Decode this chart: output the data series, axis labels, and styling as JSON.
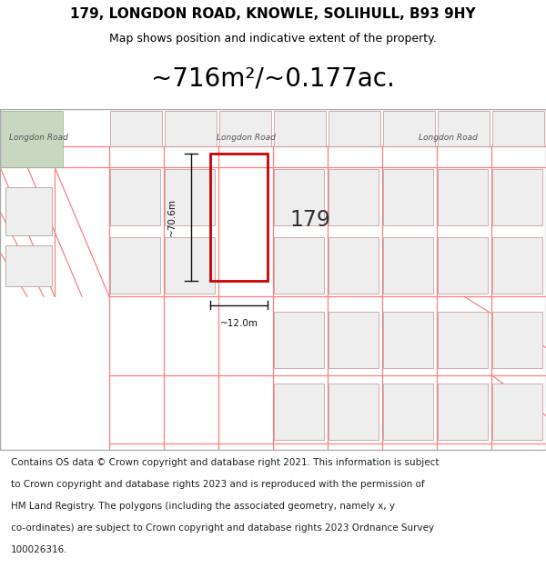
{
  "title_line1": "179, LONGDON ROAD, KNOWLE, SOLIHULL, B93 9HY",
  "title_line2": "Map shows position and indicative extent of the property.",
  "area_text": "~716m²/~0.177ac.",
  "property_number": "179",
  "dim_width": "~12.0m",
  "dim_height": "~70.6m",
  "footer_lines": [
    "Contains OS data © Crown copyright and database right 2021. This information is subject",
    "to Crown copyright and database rights 2023 and is reproduced with the permission of",
    "HM Land Registry. The polygons (including the associated geometry, namely x, y",
    "co-ordinates) are subject to Crown copyright and database rights 2023 Ordnance Survey",
    "100026316."
  ],
  "bg_color": "#ffffff",
  "map_bg": "#f0efef",
  "property_edge": "#cc0000",
  "other_prop_fill": "#eeeeee",
  "other_prop_edge": "#c8a0a0",
  "road_line_color": "#ff8080",
  "green_area_color": "#c8d8c0",
  "title_fontsize": 11,
  "subtitle_fontsize": 9,
  "area_fontsize": 20,
  "footer_fontsize": 7.5
}
